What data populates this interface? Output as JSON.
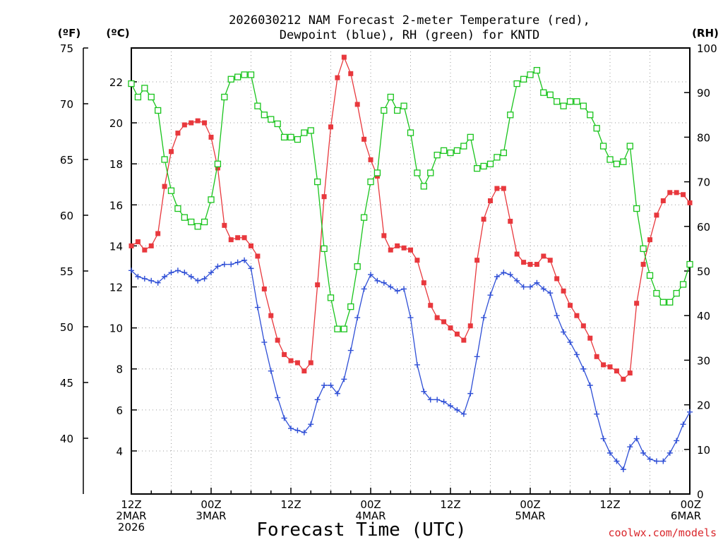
{
  "chart_data": {
    "type": "line",
    "title_line1": "2026030212 NAM Forecast 2-meter Temperature (red),",
    "title_line2": "Dewpoint (blue), RH (green) for KNTD",
    "xlabel": "Forecast Time (UTC)",
    "credit": "coolwx.com/models",
    "units": {
      "fahrenheit": "(ºF)",
      "celsius": "(ºC)",
      "rh": "(RH)"
    },
    "x_range_hours": [
      0,
      84
    ],
    "celsius_range": [
      1.9,
      23.65
    ],
    "rh_range": [
      0,
      100
    ],
    "fahrenheit_range": [
      35,
      75
    ],
    "fahrenheit_ticks": [
      40,
      45,
      50,
      55,
      60,
      65,
      70,
      75
    ],
    "celsius_ticks": [
      4,
      6,
      8,
      10,
      12,
      14,
      16,
      18,
      20,
      22
    ],
    "rh_ticks": [
      0,
      10,
      20,
      30,
      40,
      50,
      60,
      70,
      80,
      90,
      100
    ],
    "x_ticks": [
      {
        "hour": 0,
        "lines": [
          "12Z",
          "2MAR",
          "2026"
        ]
      },
      {
        "hour": 12,
        "lines": [
          "00Z",
          "3MAR"
        ]
      },
      {
        "hour": 24,
        "lines": [
          "12Z"
        ]
      },
      {
        "hour": 36,
        "lines": [
          "00Z",
          "4MAR"
        ]
      },
      {
        "hour": 48,
        "lines": [
          "12Z"
        ]
      },
      {
        "hour": 60,
        "lines": [
          "00Z",
          "5MAR"
        ]
      },
      {
        "hour": 72,
        "lines": [
          "12Z"
        ]
      },
      {
        "hour": 84,
        "lines": [
          "00Z",
          "6MAR"
        ]
      }
    ],
    "series": [
      {
        "name": "Temperature",
        "units": "C",
        "color": "#e8383d",
        "marker": "filled-square",
        "points": [
          [
            0,
            14
          ],
          [
            1,
            14.2
          ],
          [
            2,
            13.8
          ],
          [
            3,
            14
          ],
          [
            4,
            14.6
          ],
          [
            5,
            16.9
          ],
          [
            6,
            18.6
          ],
          [
            7,
            19.5
          ],
          [
            8,
            19.9
          ],
          [
            9,
            20
          ],
          [
            10,
            20.1
          ],
          [
            11,
            20
          ],
          [
            12,
            19.3
          ],
          [
            13,
            17.8
          ],
          [
            14,
            15
          ],
          [
            15,
            14.3
          ],
          [
            16,
            14.4
          ],
          [
            17,
            14.4
          ],
          [
            18,
            14
          ],
          [
            19,
            13.5
          ],
          [
            20,
            11.9
          ],
          [
            21,
            10.6
          ],
          [
            22,
            9.4
          ],
          [
            23,
            8.7
          ],
          [
            24,
            8.4
          ],
          [
            25,
            8.3
          ],
          [
            26,
            7.9
          ],
          [
            27,
            8.3
          ],
          [
            28,
            12.1
          ],
          [
            29,
            16.4
          ],
          [
            30,
            19.8
          ],
          [
            31,
            22.2
          ],
          [
            32,
            23.2
          ],
          [
            33,
            22.4
          ],
          [
            34,
            20.9
          ],
          [
            35,
            19.2
          ],
          [
            36,
            18.2
          ],
          [
            37,
            17.4
          ],
          [
            38,
            14.5
          ],
          [
            39,
            13.8
          ],
          [
            40,
            14
          ],
          [
            41,
            13.9
          ],
          [
            42,
            13.8
          ],
          [
            43,
            13.3
          ],
          [
            44,
            12.2
          ],
          [
            45,
            11.1
          ],
          [
            46,
            10.5
          ],
          [
            47,
            10.3
          ],
          [
            48,
            10
          ],
          [
            49,
            9.7
          ],
          [
            50,
            9.4
          ],
          [
            51,
            10.1
          ],
          [
            52,
            13.3
          ],
          [
            53,
            15.3
          ],
          [
            54,
            16.2
          ],
          [
            55,
            16.8
          ],
          [
            56,
            16.8
          ],
          [
            57,
            15.2
          ],
          [
            58,
            13.6
          ],
          [
            59,
            13.2
          ],
          [
            60,
            13.1
          ],
          [
            61,
            13.1
          ],
          [
            62,
            13.5
          ],
          [
            63,
            13.3
          ],
          [
            64,
            12.4
          ],
          [
            65,
            11.8
          ],
          [
            66,
            11.1
          ],
          [
            67,
            10.6
          ],
          [
            68,
            10.1
          ],
          [
            69,
            9.5
          ],
          [
            70,
            8.6
          ],
          [
            71,
            8.2
          ],
          [
            72,
            8.1
          ],
          [
            73,
            7.9
          ],
          [
            74,
            7.5
          ],
          [
            75,
            7.8
          ],
          [
            76,
            11.2
          ],
          [
            77,
            13.1
          ],
          [
            78,
            14.3
          ],
          [
            79,
            15.5
          ],
          [
            80,
            16.2
          ],
          [
            81,
            16.6
          ],
          [
            82,
            16.6
          ],
          [
            83,
            16.5
          ],
          [
            84,
            16.1
          ]
        ]
      },
      {
        "name": "Dewpoint",
        "units": "C",
        "color": "#2f4fd6",
        "marker": "plus",
        "points": [
          [
            0,
            12.8
          ],
          [
            1,
            12.5
          ],
          [
            2,
            12.4
          ],
          [
            3,
            12.3
          ],
          [
            4,
            12.2
          ],
          [
            5,
            12.5
          ],
          [
            6,
            12.7
          ],
          [
            7,
            12.8
          ],
          [
            8,
            12.7
          ],
          [
            9,
            12.5
          ],
          [
            10,
            12.3
          ],
          [
            11,
            12.4
          ],
          [
            12,
            12.7
          ],
          [
            13,
            13
          ],
          [
            14,
            13.1
          ],
          [
            15,
            13.1
          ],
          [
            16,
            13.2
          ],
          [
            17,
            13.3
          ],
          [
            18,
            12.9
          ],
          [
            19,
            11
          ],
          [
            20,
            9.3
          ],
          [
            21,
            7.9
          ],
          [
            22,
            6.6
          ],
          [
            23,
            5.6
          ],
          [
            24,
            5.1
          ],
          [
            25,
            5
          ],
          [
            26,
            4.9
          ],
          [
            27,
            5.3
          ],
          [
            28,
            6.5
          ],
          [
            29,
            7.2
          ],
          [
            30,
            7.2
          ],
          [
            31,
            6.8
          ],
          [
            32,
            7.5
          ],
          [
            33,
            8.9
          ],
          [
            34,
            10.5
          ],
          [
            35,
            11.9
          ],
          [
            36,
            12.6
          ],
          [
            37,
            12.3
          ],
          [
            38,
            12.2
          ],
          [
            39,
            12
          ],
          [
            40,
            11.8
          ],
          [
            41,
            11.9
          ],
          [
            42,
            10.5
          ],
          [
            43,
            8.2
          ],
          [
            44,
            6.9
          ],
          [
            45,
            6.5
          ],
          [
            46,
            6.5
          ],
          [
            47,
            6.4
          ],
          [
            48,
            6.2
          ],
          [
            49,
            6
          ],
          [
            50,
            5.8
          ],
          [
            51,
            6.8
          ],
          [
            52,
            8.6
          ],
          [
            53,
            10.5
          ],
          [
            54,
            11.6
          ],
          [
            55,
            12.5
          ],
          [
            56,
            12.7
          ],
          [
            57,
            12.6
          ],
          [
            58,
            12.3
          ],
          [
            59,
            12
          ],
          [
            60,
            12
          ],
          [
            61,
            12.2
          ],
          [
            62,
            11.9
          ],
          [
            63,
            11.7
          ],
          [
            64,
            10.6
          ],
          [
            65,
            9.8
          ],
          [
            66,
            9.3
          ],
          [
            67,
            8.7
          ],
          [
            68,
            8
          ],
          [
            69,
            7.2
          ],
          [
            70,
            5.8
          ],
          [
            71,
            4.6
          ],
          [
            72,
            3.9
          ],
          [
            73,
            3.5
          ],
          [
            74,
            3.1
          ],
          [
            75,
            4.2
          ],
          [
            76,
            4.6
          ],
          [
            77,
            3.9
          ],
          [
            78,
            3.6
          ],
          [
            79,
            3.5
          ],
          [
            80,
            3.5
          ],
          [
            81,
            3.9
          ],
          [
            82,
            4.5
          ],
          [
            83,
            5.3
          ],
          [
            84,
            5.9
          ]
        ]
      },
      {
        "name": "RH",
        "units": "%",
        "color": "#19c41c",
        "marker": "open-square",
        "points": [
          [
            0,
            92
          ],
          [
            1,
            89
          ],
          [
            2,
            91
          ],
          [
            3,
            89
          ],
          [
            4,
            86
          ],
          [
            5,
            75
          ],
          [
            6,
            68
          ],
          [
            7,
            64
          ],
          [
            8,
            62
          ],
          [
            9,
            61
          ],
          [
            10,
            60
          ],
          [
            11,
            61
          ],
          [
            12,
            66
          ],
          [
            13,
            74
          ],
          [
            14,
            89
          ],
          [
            15,
            93
          ],
          [
            16,
            93.5
          ],
          [
            17,
            94
          ],
          [
            18,
            94
          ],
          [
            19,
            87
          ],
          [
            20,
            85
          ],
          [
            21,
            84
          ],
          [
            22,
            83
          ],
          [
            23,
            80
          ],
          [
            24,
            80
          ],
          [
            25,
            79.5
          ],
          [
            26,
            81
          ],
          [
            27,
            81.5
          ],
          [
            28,
            70
          ],
          [
            29,
            55
          ],
          [
            30,
            44
          ],
          [
            31,
            37
          ],
          [
            32,
            37
          ],
          [
            33,
            42
          ],
          [
            34,
            51
          ],
          [
            35,
            62
          ],
          [
            36,
            70
          ],
          [
            37,
            72
          ],
          [
            38,
            86
          ],
          [
            39,
            89
          ],
          [
            40,
            86
          ],
          [
            41,
            87
          ],
          [
            42,
            81
          ],
          [
            43,
            72
          ],
          [
            44,
            69
          ],
          [
            45,
            72
          ],
          [
            46,
            76
          ],
          [
            47,
            77
          ],
          [
            48,
            76.5
          ],
          [
            49,
            77
          ],
          [
            50,
            78
          ],
          [
            51,
            80
          ],
          [
            52,
            73
          ],
          [
            53,
            73.5
          ],
          [
            54,
            74
          ],
          [
            55,
            75.5
          ],
          [
            56,
            76.5
          ],
          [
            57,
            85
          ],
          [
            58,
            92
          ],
          [
            59,
            93
          ],
          [
            60,
            94
          ],
          [
            61,
            95
          ],
          [
            62,
            90
          ],
          [
            63,
            89.5
          ],
          [
            64,
            88
          ],
          [
            65,
            87
          ],
          [
            66,
            88
          ],
          [
            67,
            88
          ],
          [
            68,
            87
          ],
          [
            69,
            85
          ],
          [
            70,
            82
          ],
          [
            71,
            78
          ],
          [
            72,
            75
          ],
          [
            73,
            74
          ],
          [
            74,
            74.5
          ],
          [
            75,
            78
          ],
          [
            76,
            64
          ],
          [
            77,
            55
          ],
          [
            78,
            49
          ],
          [
            79,
            45
          ],
          [
            80,
            43
          ],
          [
            81,
            43
          ],
          [
            82,
            45
          ],
          [
            83,
            47
          ],
          [
            84,
            51.5
          ]
        ]
      }
    ]
  }
}
